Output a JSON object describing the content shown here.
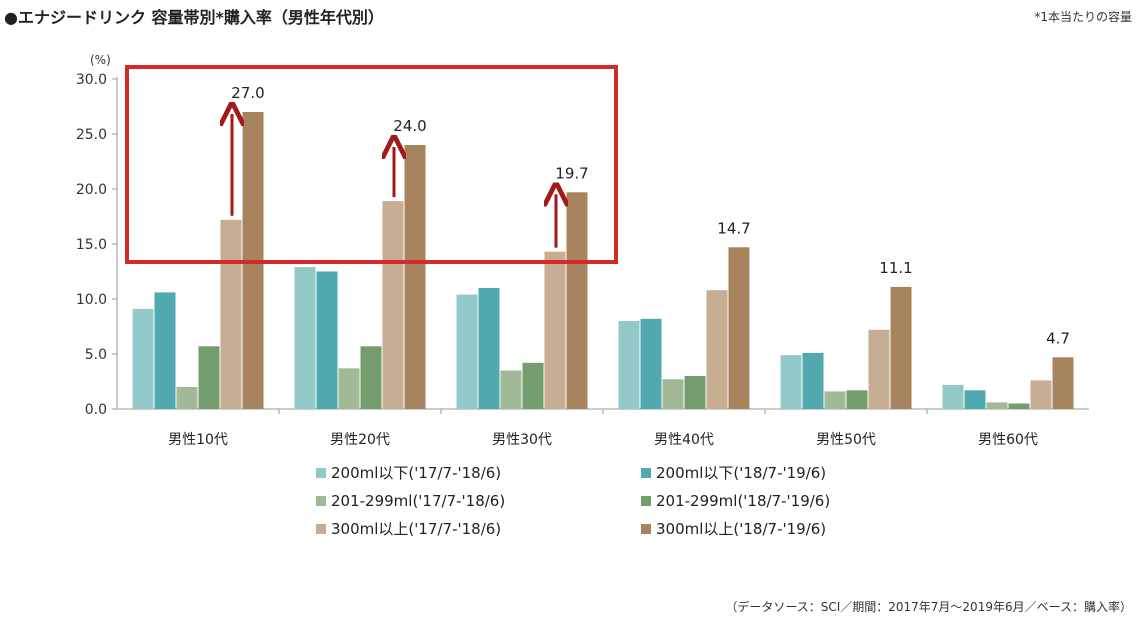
{
  "header": {
    "title": "●エナジードリンク 容量帯別*購入率（男性年代別）",
    "note": "*1本当たりの容量"
  },
  "footer": {
    "source": "（データソース：SCI／期間：2017年7月～2019年6月／ベース：購入率）"
  },
  "chart_data": {
    "type": "bar",
    "title": "エナジードリンク 容量帯別*購入率（男性年代別）",
    "ylabel": "(%)",
    "ylim": [
      0,
      30
    ],
    "yticks": [
      "0.0",
      "5.0",
      "10.0",
      "15.0",
      "20.0",
      "25.0",
      "30.0"
    ],
    "categories": [
      "男性10代",
      "男性20代",
      "男性30代",
      "男性40代",
      "男性50代",
      "男性60代"
    ],
    "series": [
      {
        "name": "200ml以下('17/7-'18/6)",
        "color": "#93C8C9",
        "values": [
          9.1,
          12.9,
          10.4,
          8.0,
          4.9,
          2.2
        ]
      },
      {
        "name": "200ml以下('18/7-'19/6)",
        "color": "#4FA9AE",
        "values": [
          10.6,
          12.5,
          11.0,
          8.2,
          5.1,
          1.7
        ]
      },
      {
        "name": "201-299ml('17/7-'18/6)",
        "color": "#A2B997",
        "values": [
          2.0,
          3.7,
          3.5,
          2.7,
          1.6,
          0.6
        ]
      },
      {
        "name": "201-299ml('18/7-'19/6)",
        "color": "#739D6C",
        "values": [
          5.7,
          5.7,
          4.2,
          3.0,
          1.7,
          0.5
        ]
      },
      {
        "name": "300ml以上('17/7-'18/6)",
        "color": "#C7AE93",
        "values": [
          17.2,
          18.9,
          14.3,
          10.8,
          7.2,
          2.6
        ]
      },
      {
        "name": "300ml以上('18/7-'19/6)",
        "color": "#A8845E",
        "values": [
          27.0,
          24.0,
          19.7,
          14.7,
          11.1,
          4.7
        ]
      }
    ],
    "data_labels": [
      "27.0",
      "24.0",
      "19.7",
      "14.7",
      "11.1",
      "4.7"
    ],
    "annotations": {
      "highlight_box_color": "#D42A2A",
      "arrow_color": "#A01A1A"
    },
    "grid": false,
    "legend_position": "bottom"
  }
}
